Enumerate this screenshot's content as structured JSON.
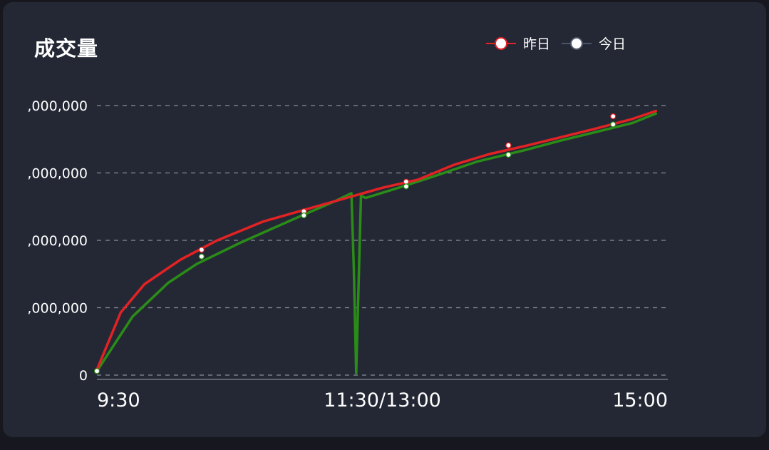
{
  "card": {
    "title": "成交量"
  },
  "legend": [
    {
      "name": "昨日",
      "color": "#e32224"
    },
    {
      "name": "今日",
      "color": "#4a5568"
    }
  ],
  "colors": {
    "background": "#242835",
    "grid": "#8a8d96",
    "yesterday": "#e32224",
    "today": "#2a8d17",
    "marker": "#ffffff"
  },
  "chart_data": {
    "type": "line",
    "y_tick_labels": [
      ",000,000",
      ",000,000",
      ",000,000",
      ",000,000",
      "0"
    ],
    "x_tick_labels": [
      "9:30",
      "11:30/13:00",
      "15:00"
    ],
    "x_domain": [
      0,
      240
    ],
    "y_domain": [
      0,
      4
    ],
    "grid": "dashed horizontal lines",
    "legend_position": "top-right",
    "series": [
      {
        "name": "昨日",
        "color": "#e32224",
        "x": [
          0,
          10,
          20,
          35,
          50,
          70,
          90,
          105,
          120,
          135,
          150,
          165,
          180,
          195,
          210,
          225,
          235
        ],
        "y": [
          0.08,
          0.93,
          1.35,
          1.71,
          1.99,
          2.28,
          2.48,
          2.63,
          2.78,
          2.9,
          3.12,
          3.28,
          3.4,
          3.53,
          3.66,
          3.8,
          3.92
        ]
      },
      {
        "name": "今日",
        "color": "#2a8d17",
        "x": [
          0,
          15,
          30,
          42,
          60,
          85,
          100,
          107,
          108,
          109,
          111,
          113,
          125,
          140,
          160,
          180,
          195,
          210,
          225,
          235
        ],
        "y": [
          0.06,
          0.87,
          1.37,
          1.65,
          1.96,
          2.35,
          2.58,
          2.7,
          1.6,
          0.03,
          2.66,
          2.63,
          2.76,
          2.93,
          3.17,
          3.34,
          3.48,
          3.61,
          3.74,
          3.88
        ]
      }
    ],
    "markers": [
      {
        "series": "昨日",
        "x": [
          44,
          87,
          130,
          173,
          217
        ],
        "y": [
          1.86,
          2.43,
          2.87,
          3.41,
          3.84
        ]
      },
      {
        "series": "今日",
        "x": [
          0,
          44,
          87,
          130,
          173,
          217
        ],
        "y": [
          0.06,
          1.76,
          2.37,
          2.8,
          3.27,
          3.72
        ]
      }
    ]
  }
}
